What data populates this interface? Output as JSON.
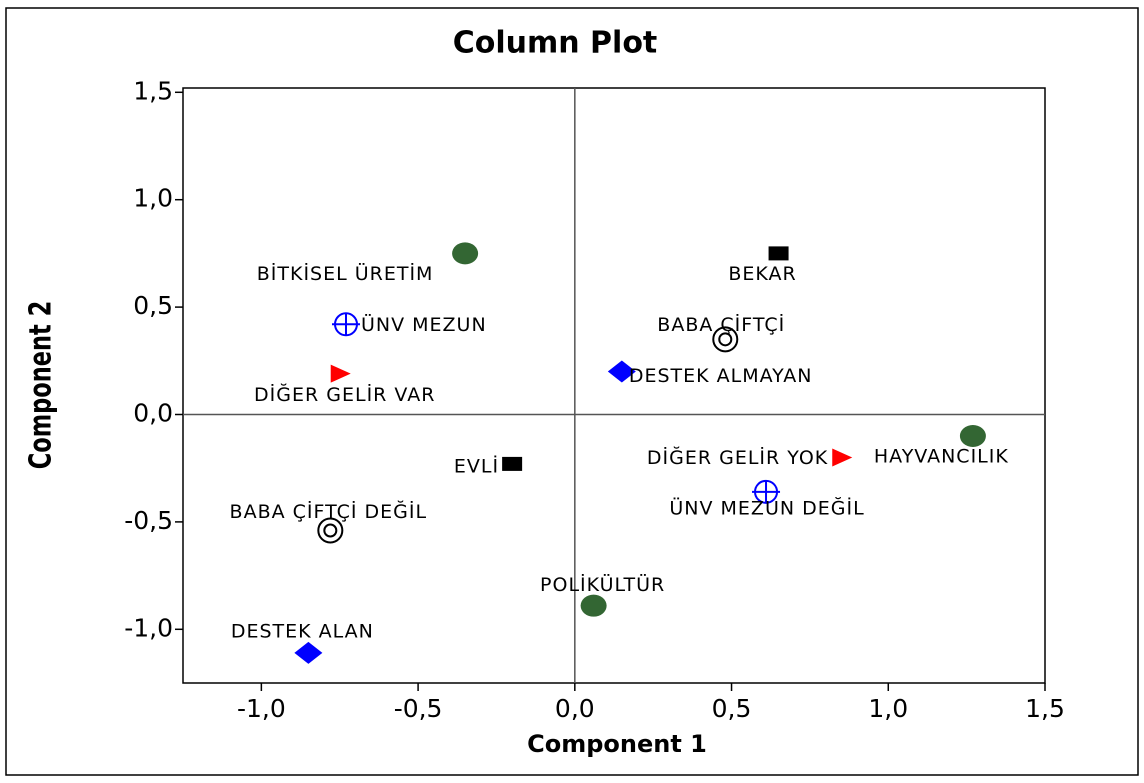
{
  "chart_data": {
    "type": "scatter",
    "title": "Column Plot",
    "x_label": "Component 1",
    "y_label": "Component 2",
    "xlim": [
      -1.25,
      1.5
    ],
    "ylim": [
      -1.25,
      1.52
    ],
    "xticks": [
      {
        "value": -1.0,
        "label": "-1,0"
      },
      {
        "value": -0.5,
        "label": "-0,5"
      },
      {
        "value": 0,
        "label": "0,0"
      },
      {
        "value": 0.5,
        "label": "0,5"
      },
      {
        "value": 1.0,
        "label": "1,0"
      },
      {
        "value": 1.5,
        "label": "1,5"
      }
    ],
    "yticks": [
      {
        "value": -1.0,
        "label": "-1,0"
      },
      {
        "value": -0.5,
        "label": "-0,5"
      },
      {
        "value": 0,
        "label": "0,0"
      },
      {
        "value": 0.5,
        "label": "0,5"
      },
      {
        "value": 1.0,
        "label": "1,0"
      },
      {
        "value": 1.5,
        "label": "1,5"
      }
    ],
    "zero_lines": true,
    "series": [
      {
        "marker": "circle",
        "color": "#336633",
        "x": [
          -0.35,
          1.27,
          0.06
        ],
        "y": [
          0.75,
          -0.1,
          -0.89
        ],
        "labels": [
          "BİTKİSEL ÜRETİM",
          "HAYVANCILIK",
          "POLİKÜLTÜR"
        ]
      },
      {
        "marker": "square",
        "color": "#000000",
        "x": [
          0.65,
          -0.2
        ],
        "y": [
          0.75,
          -0.23
        ],
        "labels": [
          "BEKAR",
          "EVLİ"
        ]
      },
      {
        "marker": "crosshair",
        "color": "#0000ff",
        "x": [
          -0.73,
          0.61
        ],
        "y": [
          0.42,
          -0.36
        ],
        "labels": [
          "ÜNV MEZUN",
          "ÜNV MEZUN DEĞİL"
        ]
      },
      {
        "marker": "ring",
        "color": "#000000",
        "x": [
          0.48,
          -0.78
        ],
        "y": [
          0.35,
          -0.54
        ],
        "labels": [
          "BABA ÇİFTÇİ",
          "BABA ÇİFTÇİ DEĞİL"
        ]
      },
      {
        "marker": "diamond",
        "color": "#0000ff",
        "x": [
          0.15,
          -0.85
        ],
        "y": [
          0.2,
          -1.11
        ],
        "labels": [
          "DESTEK ALMAYAN",
          "DESTEK ALAN"
        ]
      },
      {
        "marker": "triangle",
        "color": "#ff0000",
        "x": [
          -0.75,
          0.85
        ],
        "y": [
          0.19,
          -0.2
        ],
        "labels": [
          "DİĞER GELİR VAR",
          "DİĞER GELİR YOK"
        ]
      }
    ]
  }
}
